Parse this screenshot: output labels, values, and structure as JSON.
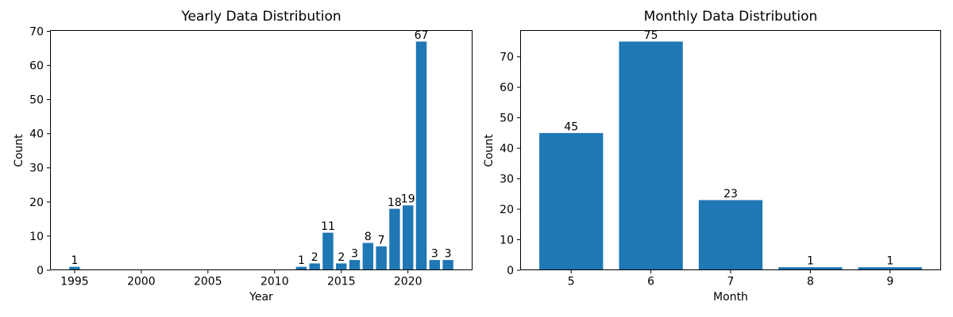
{
  "figure": {
    "background": "#ffffff",
    "text_color": "#000000",
    "spine_color": "#000000"
  },
  "chart_data": [
    {
      "type": "bar",
      "title": "Yearly Data Distribution",
      "xlabel": "Year",
      "ylabel": "Count",
      "x": [
        1995,
        2012,
        2013,
        2014,
        2015,
        2016,
        2017,
        2018,
        2019,
        2020,
        2021,
        2022,
        2023
      ],
      "values": [
        1,
        1,
        2,
        11,
        2,
        3,
        8,
        7,
        18,
        19,
        67,
        3,
        3
      ],
      "bar_color": "#1f77b4",
      "bar_width": 0.8,
      "xlim": [
        1993.16,
        2024.84
      ],
      "ylim": [
        0,
        70.35
      ],
      "xticks": [
        1995,
        2000,
        2005,
        2010,
        2015,
        2020
      ],
      "yticks": [
        0,
        10,
        20,
        30,
        40,
        50,
        60,
        70
      ],
      "grid": false,
      "legend": "none",
      "bar_value_labels": true
    },
    {
      "type": "bar",
      "title": "Monthly Data Distribution",
      "xlabel": "Month",
      "ylabel": "Count",
      "x": [
        5,
        6,
        7,
        8,
        9
      ],
      "values": [
        45,
        75,
        23,
        1,
        1
      ],
      "bar_color": "#1f77b4",
      "bar_width": 0.8,
      "xlim": [
        4.36,
        9.64
      ],
      "ylim": [
        0,
        78.75
      ],
      "xticks": [
        5,
        6,
        7,
        8,
        9
      ],
      "yticks": [
        0,
        10,
        20,
        30,
        40,
        50,
        60,
        70
      ],
      "grid": false,
      "legend": "none",
      "bar_value_labels": true
    }
  ]
}
